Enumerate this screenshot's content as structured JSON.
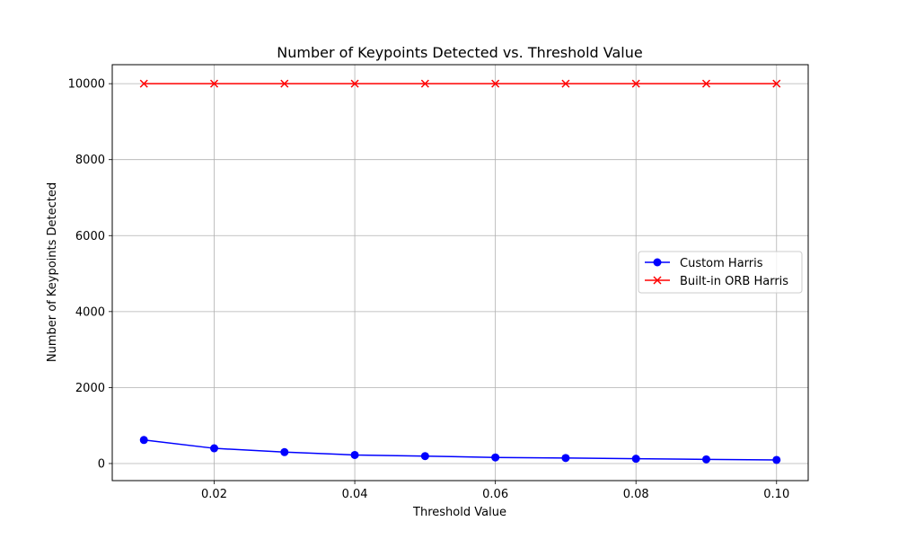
{
  "chart_data": {
    "type": "line",
    "title": "Number of Keypoints Detected vs. Threshold Value",
    "xlabel": "Threshold Value",
    "ylabel": "Number of Keypoints Detected",
    "x": [
      0.01,
      0.02,
      0.03,
      0.04,
      0.05,
      0.06,
      0.07,
      0.08,
      0.09,
      0.1
    ],
    "xlim": [
      0.0055,
      0.1045
    ],
    "ylim": [
      -450,
      10500
    ],
    "xticks": [
      "0.02",
      "0.04",
      "0.06",
      "0.08",
      "0.10"
    ],
    "yticks": [
      "0",
      "2000",
      "4000",
      "6000",
      "8000",
      "10000"
    ],
    "grid": true,
    "legend_position": "center-right",
    "series": [
      {
        "name": "Custom Harris",
        "color": "#0000ff",
        "marker": "circle",
        "values": [
          620,
          400,
          300,
          225,
          195,
          160,
          145,
          125,
          110,
          95
        ]
      },
      {
        "name": "Built-in ORB Harris",
        "color": "#ff0000",
        "marker": "x",
        "values": [
          10000,
          10000,
          10000,
          10000,
          10000,
          10000,
          10000,
          10000,
          10000,
          10000
        ]
      }
    ]
  }
}
